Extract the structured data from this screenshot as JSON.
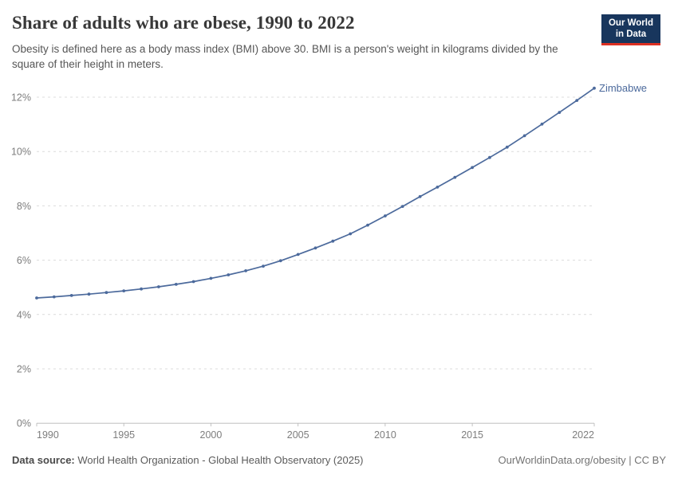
{
  "header": {
    "title": "Share of adults who are obese, 1990 to 2022",
    "subtitle": "Obesity is defined here as a body mass index (BMI) above 30. BMI is a person's weight in kilograms divided by the square of their height in meters."
  },
  "logo": {
    "line1": "Our World",
    "line2": "in Data"
  },
  "chart_data": {
    "type": "line",
    "title": "Share of adults who are obese, 1990 to 2022",
    "xlabel": "",
    "ylabel": "",
    "xlim": [
      1990,
      2022
    ],
    "ylim": [
      0,
      12.8
    ],
    "grid": "horizontal-dashed",
    "legend_position": "end-of-line-label",
    "x_ticks": [
      1990,
      1995,
      2000,
      2005,
      2010,
      2015,
      2022
    ],
    "y_ticks": [
      {
        "value": 0,
        "label": "0%"
      },
      {
        "value": 2,
        "label": "2%"
      },
      {
        "value": 4,
        "label": "4%"
      },
      {
        "value": 6,
        "label": "6%"
      },
      {
        "value": 8,
        "label": "8%"
      },
      {
        "value": 10,
        "label": "10%"
      },
      {
        "value": 12,
        "label": "12%"
      }
    ],
    "series": [
      {
        "name": "Zimbabwe",
        "color": "#4C6A9C",
        "x": [
          1990,
          1991,
          1992,
          1993,
          1994,
          1995,
          1996,
          1997,
          1998,
          1999,
          2000,
          2001,
          2002,
          2003,
          2004,
          2005,
          2006,
          2007,
          2008,
          2009,
          2010,
          2011,
          2012,
          2013,
          2014,
          2015,
          2016,
          2017,
          2018,
          2019,
          2020,
          2021,
          2022
        ],
        "values": [
          4.61,
          4.65,
          4.7,
          4.75,
          4.81,
          4.87,
          4.94,
          5.02,
          5.11,
          5.21,
          5.33,
          5.46,
          5.61,
          5.78,
          5.98,
          6.21,
          6.45,
          6.7,
          6.97,
          7.29,
          7.63,
          7.98,
          8.34,
          8.69,
          9.05,
          9.41,
          9.78,
          10.16,
          10.58,
          11.01,
          11.44,
          11.88,
          12.33
        ]
      }
    ]
  },
  "footer": {
    "source_label": "Data source:",
    "source_text": " World Health Organization - Global Health Observatory (2025)",
    "credit": "OurWorldinData.org/obesity | CC BY"
  },
  "colors": {
    "line": "#4C6A9C",
    "gridline": "#dcdcdc",
    "axis_line": "#c0c0c0",
    "axis_text": "#7d7d7d"
  }
}
